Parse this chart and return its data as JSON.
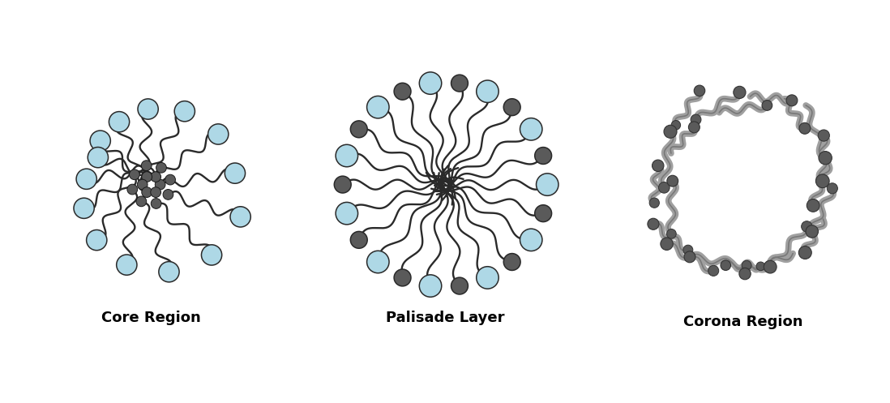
{
  "labels": [
    "Core Region",
    "Palisade Layer",
    "Corona Region"
  ],
  "label_fontsize": 13,
  "label_fontweight": "bold",
  "bg_color": "#ffffff",
  "light_blue": "#aed8e6",
  "dark_gray": "#5a5a5a",
  "line_color": "#2a2a2a",
  "gray_chain_color": "#a0a0a0",
  "fig_width": 10.98,
  "fig_height": 4.97,
  "core_n": 14,
  "palisade_n": 22,
  "corona_n": 20
}
